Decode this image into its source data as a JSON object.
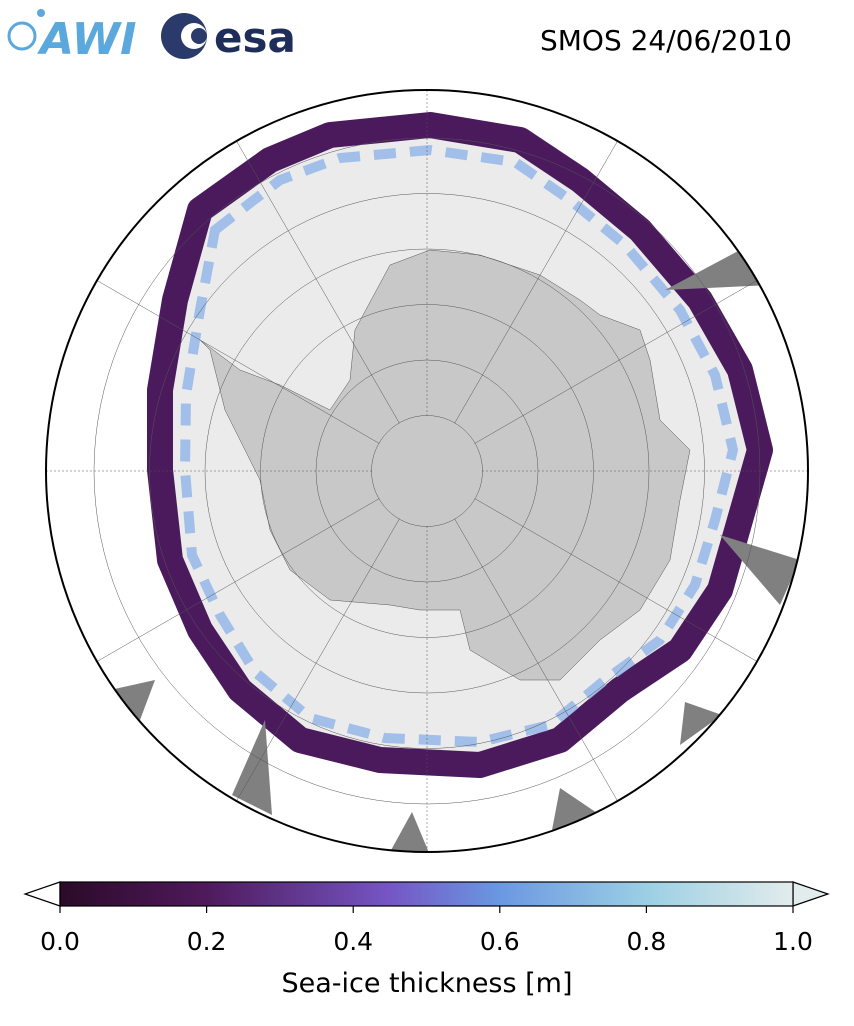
{
  "header": {
    "logos": [
      "AWI",
      "esa"
    ],
    "title": "SMOS 24/06/2010"
  },
  "colorbar": {
    "lim": [
      0,
      1
    ],
    "ticks": [
      {
        "value": 0,
        "label": "0.0"
      },
      0.2,
      0.4,
      0.6,
      0.8,
      {
        "value": 1,
        "label": "1.0"
      }
    ],
    "label": "Sea-ice thickness [m]"
  }
}
